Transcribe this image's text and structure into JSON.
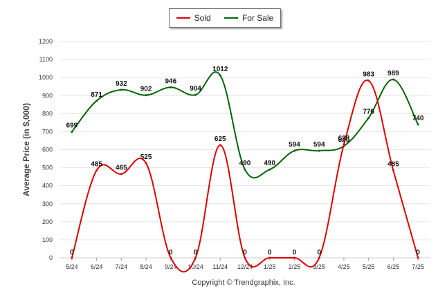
{
  "legend": [
    {
      "label": "Sold",
      "color": "#dd0000"
    },
    {
      "label": "For Sale",
      "color": "#006600"
    }
  ],
  "copyright": "Copyright © Trendgraphix, Inc.",
  "chart_data": {
    "type": "line",
    "title": "",
    "xlabel": "",
    "ylabel": "Average Price (in $,000)",
    "categories": [
      "5/24",
      "6/24",
      "7/24",
      "8/24",
      "9/24",
      "10/24",
      "11/24",
      "12/24",
      "1/25",
      "2/25",
      "3/25",
      "4/25",
      "5/25",
      "6/25",
      "7/25"
    ],
    "ylim": [
      0,
      1200
    ],
    "yticks": [
      0,
      100,
      200,
      300,
      400,
      500,
      600,
      700,
      800,
      900,
      1000,
      1100,
      1200
    ],
    "grid": true,
    "legend_position": "top-center",
    "series": [
      {
        "name": "Sold",
        "color": "#dd0000",
        "values": [
          0,
          485,
          465,
          525,
          0,
          0,
          625,
          0,
          0,
          0,
          0,
          628,
          983,
          485,
          0
        ]
      },
      {
        "name": "For Sale",
        "color": "#006600",
        "values": [
          699,
          871,
          932,
          902,
          946,
          904,
          1012,
          490,
          490,
          594,
          594,
          620,
          776,
          989,
          740
        ]
      }
    ]
  }
}
